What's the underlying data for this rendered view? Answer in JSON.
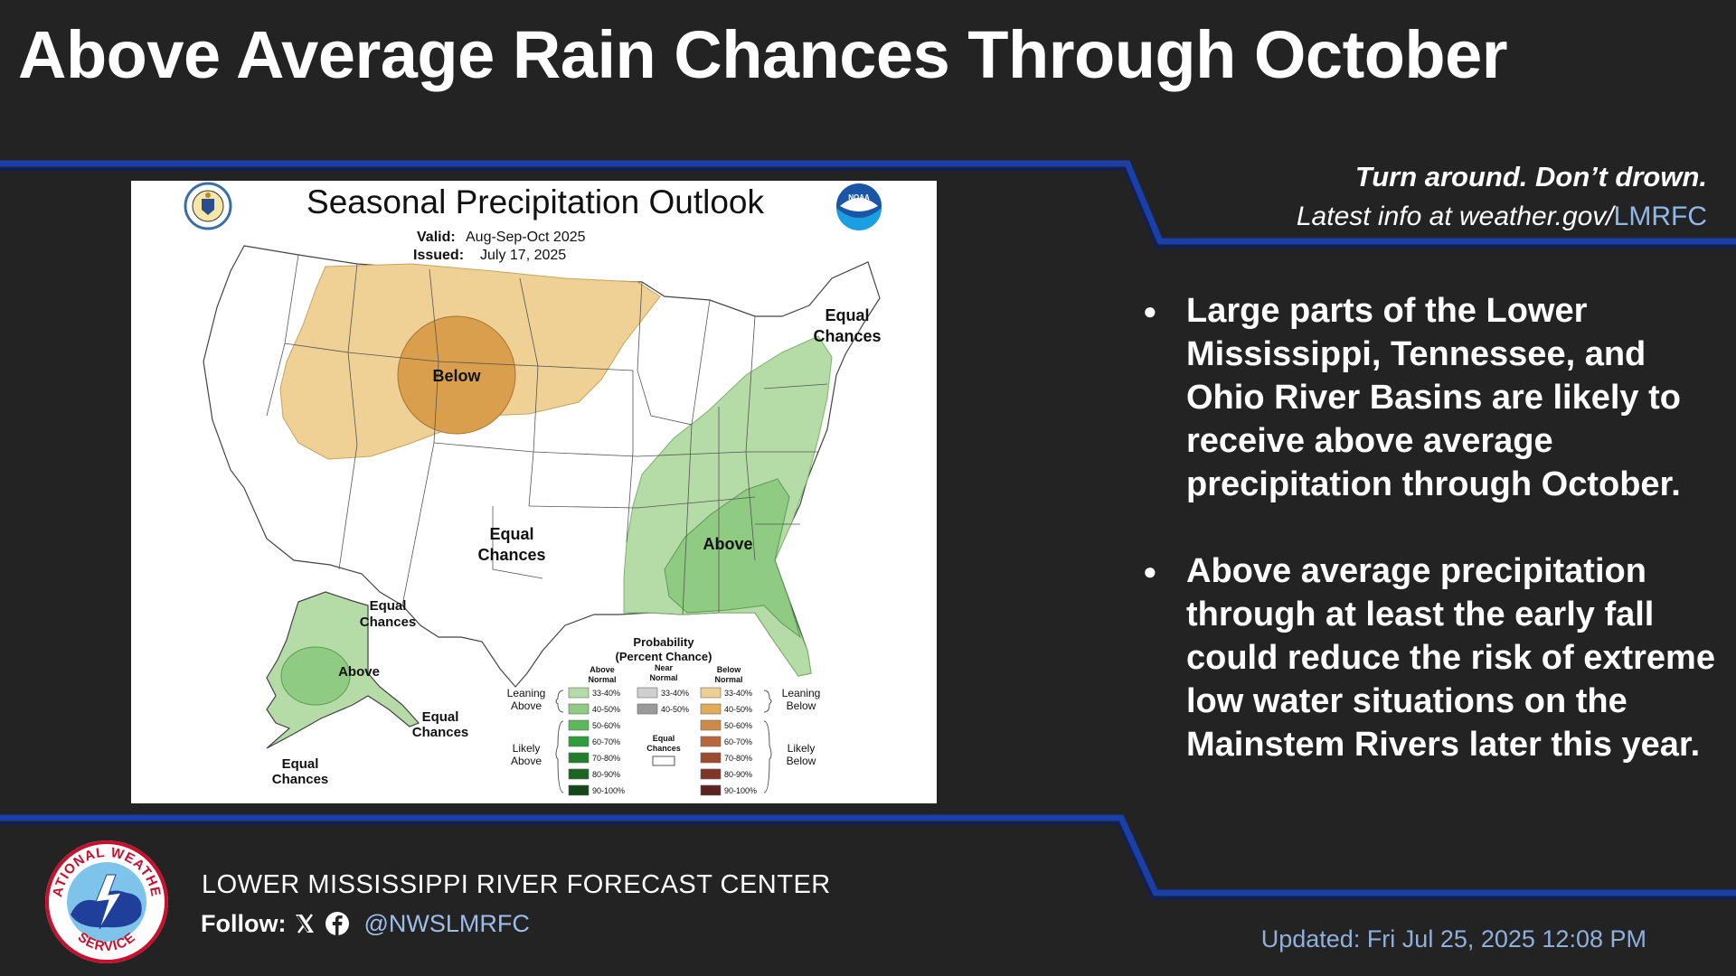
{
  "title": "Above Average Rain Chances Through October",
  "tagline": {
    "line1": "Turn around. Don’t drown.",
    "line2_prefix": "Latest info at weather.gov/",
    "line2_suffix": "LMRFC"
  },
  "map": {
    "title": "Seasonal Precipitation Outlook",
    "valid_label": "Valid:",
    "valid_value": "Aug-Sep-Oct 2025",
    "issued_label": "Issued:",
    "issued_value": "July 17, 2025",
    "logo_left": "doc-seal",
    "logo_right_text": "NOAA",
    "labels": {
      "below": "Below",
      "above_east": "Above",
      "equal_center_1": "Equal",
      "equal_center_2": "Chances",
      "equal_ne_1": "Equal",
      "equal_ne_2": "Chances",
      "equal_ak_n_1": "Equal",
      "equal_ak_n_2": "Chances",
      "above_ak": "Above",
      "equal_ak_se_1": "Equal",
      "equal_ak_se_2": "Chances",
      "equal_ak_sw_1": "Equal",
      "equal_ak_sw_2": "Chances"
    },
    "legend": {
      "title1": "Probability",
      "title2": "(Percent Chance)",
      "col_above_1": "Above",
      "col_above_2": "Normal",
      "col_near_1": "Near",
      "col_near_2": "Normal",
      "col_below_1": "Below",
      "col_below_2": "Normal",
      "leaning_above_1": "Leaning",
      "leaning_above_2": "Above",
      "likely_above_1": "Likely",
      "likely_above_2": "Above",
      "leaning_below_1": "Leaning",
      "leaning_below_2": "Below",
      "likely_below_1": "Likely",
      "likely_below_2": "Below",
      "equal_1": "Equal",
      "equal_2": "Chances",
      "above_rows": [
        "33-40%",
        "40-50%",
        "50-60%",
        "60-70%",
        "70-80%",
        "80-90%",
        "90-100%"
      ],
      "near_rows": [
        "33-40%",
        "40-50%"
      ],
      "below_rows": [
        "33-40%",
        "40-50%",
        "50-60%",
        "60-70%",
        "70-80%",
        "80-90%",
        "90-100%"
      ],
      "above_colors": [
        "#b5dba6",
        "#8fcb83",
        "#5cb85a",
        "#2e9e3b",
        "#1f7f2c",
        "#1b6523",
        "#12471a"
      ],
      "near_colors": [
        "#cfcfcf",
        "#9a9a9a"
      ],
      "below_colors": [
        "#eecf92",
        "#e1ac58",
        "#cf8a48",
        "#b8663a",
        "#9c4b30",
        "#7e3626",
        "#5a2220"
      ]
    }
  },
  "bullets": [
    "Large parts of the Lower Mississippi, Tennessee, and Ohio River Basins are likely to receive above average precipitation through October.",
    "Above average precipitation through at least the early fall could reduce the risk of extreme low water situations on the Mainstem Rivers later this year."
  ],
  "footer": {
    "org": "LOWER MISSISSIPPI RIVER FORECAST CENTER",
    "follow_label": "Follow:",
    "handle": "@NWSLMRFC",
    "updated": "Updated: Fri Jul 25, 2025 12:08 PM",
    "logo_top_text": "NATIONAL WEATHER",
    "logo_bottom_text": "SERVICE"
  },
  "colors": {
    "background": "#232323",
    "accent_blue": "#1a3fa8",
    "above_light": "#b5dba6",
    "above_mid": "#8fcb83",
    "below_light": "#efd095",
    "below_mid": "#d99f4d"
  }
}
